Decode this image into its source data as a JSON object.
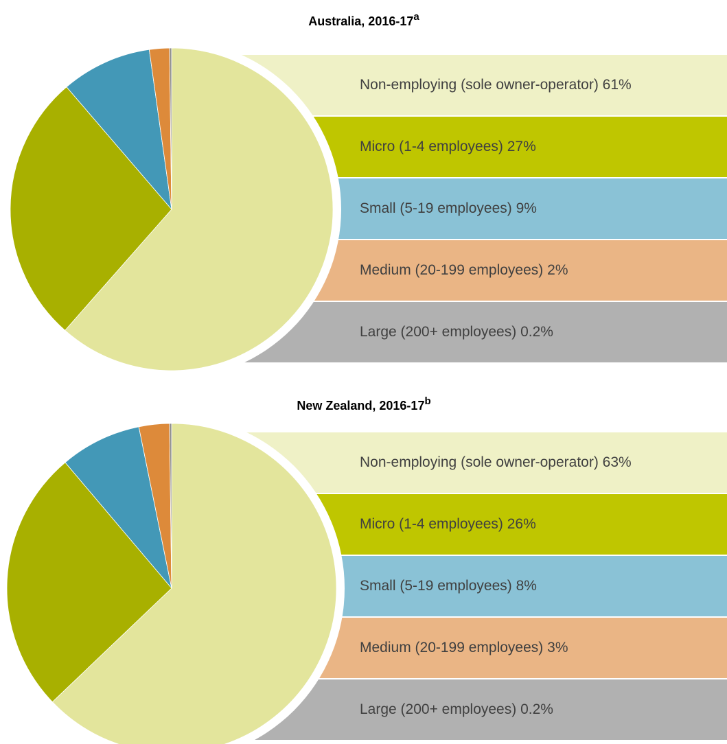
{
  "chart_data": [
    {
      "type": "pie",
      "title": "Australia, 2016-17",
      "title_note": "a",
      "categories": [
        "Non-employing (sole owner-operator)",
        "Micro (1-4 employees)",
        "Small (5-19 employees)",
        "Medium (20-199 employees)",
        "Large (200+ employees)"
      ],
      "values": [
        61,
        27,
        9,
        2,
        0.2
      ],
      "value_labels": [
        "61%",
        "27%",
        "9%",
        "2%",
        "0.2%"
      ],
      "colors": [
        "#e3e59c",
        "#a8b000",
        "#4398b7",
        "#dd8a3a",
        "#8a8a8a"
      ],
      "legend_colors": [
        "#eff1c6",
        "#bfc600",
        "#8ac2d6",
        "#eab585",
        "#b1b1b1"
      ]
    },
    {
      "type": "pie",
      "title": "New Zealand, 2016-17",
      "title_note": "b",
      "categories": [
        "Non-employing (sole owner-operator)",
        "Micro (1-4 employees)",
        "Small (5-19 employees)",
        "Medium (20-199 employees)",
        "Large (200+ employees)"
      ],
      "values": [
        63,
        26,
        8,
        3,
        0.2
      ],
      "value_labels": [
        "63%",
        "26%",
        "8%",
        "3%",
        "0.2%"
      ],
      "colors": [
        "#e3e59c",
        "#a8b000",
        "#4398b7",
        "#dd8a3a",
        "#8a8a8a"
      ],
      "legend_colors": [
        "#eff1c6",
        "#bfc600",
        "#8ac2d6",
        "#eab585",
        "#b1b1b1"
      ]
    }
  ]
}
